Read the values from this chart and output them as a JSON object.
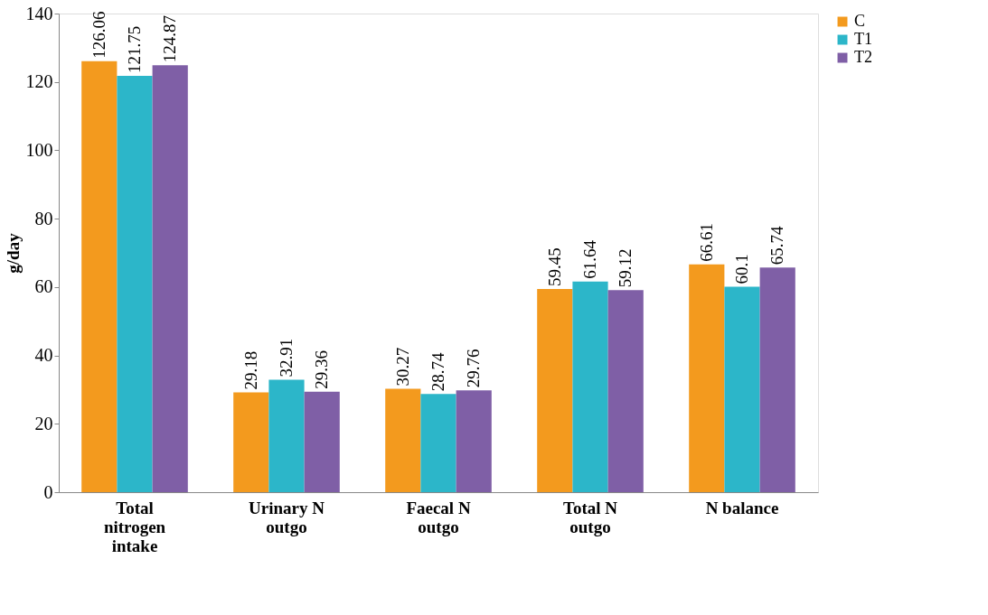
{
  "chart_data": {
    "type": "bar",
    "ylabel": "g/day",
    "categories": [
      "Total nitrogen intake",
      "Urinary N outgo",
      "Faecal N outgo",
      "Total N outgo",
      "N balance"
    ],
    "series": [
      {
        "name": "C",
        "color": "#f39a1e",
        "values": [
          126.06,
          29.18,
          30.27,
          59.45,
          66.61
        ]
      },
      {
        "name": "T1",
        "color": "#2cb6c9",
        "values": [
          121.75,
          32.91,
          28.74,
          61.64,
          60.1
        ]
      },
      {
        "name": "T2",
        "color": "#7f5fa6",
        "values": [
          124.87,
          29.36,
          29.76,
          59.12,
          65.74
        ]
      }
    ],
    "ylim": [
      0,
      140
    ],
    "yticks": [
      0,
      20,
      40,
      60,
      80,
      100,
      120,
      140
    ],
    "data_labels": true,
    "grid": false,
    "legend": "right"
  }
}
